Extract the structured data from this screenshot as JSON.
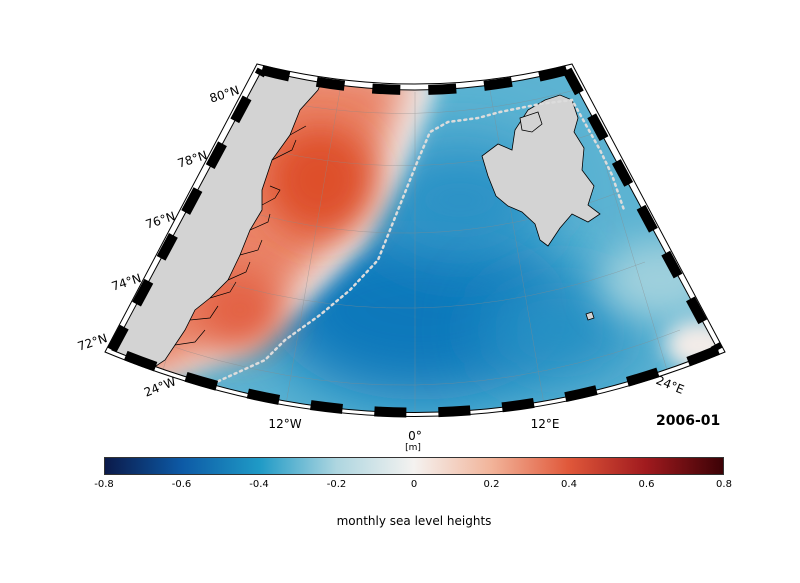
{
  "map": {
    "lat_labels": [
      "72°N",
      "74°N",
      "76°N",
      "78°N",
      "80°N"
    ],
    "lon_labels": [
      "24°W",
      "12°W",
      "0°",
      "12°E",
      "24°E"
    ],
    "date_label": "2006-01",
    "colors": {
      "land": "#d3d3d3",
      "positive": "#e35a3a",
      "negative": "#1586c6",
      "neutral": "#f1f1f1",
      "frame_dark": "#000000",
      "frame_light": "#ffffff"
    }
  },
  "colorbar": {
    "unit": "[m]",
    "ticks": [
      "-0.8",
      "-0.6",
      "-0.4",
      "-0.2",
      "0",
      "0.2",
      "0.4",
      "0.6",
      "0.8"
    ],
    "range": [
      -0.8,
      0.8
    ],
    "title": "monthly sea level heights",
    "colormap": [
      "#0b1a4a",
      "#0d5aa6",
      "#1f9ac6",
      "#aed6e0",
      "#f4f2f0",
      "#f2b49a",
      "#e0583a",
      "#a01a1e",
      "#3c0206"
    ]
  }
}
